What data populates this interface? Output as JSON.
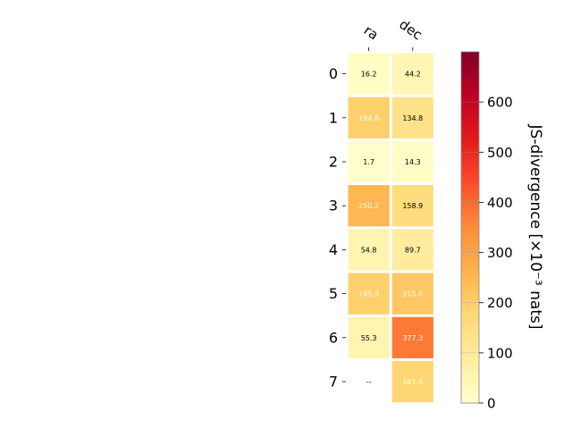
{
  "chart_data": {
    "type": "heatmap",
    "columns": [
      "ra",
      "dec"
    ],
    "rows": [
      "0",
      "1",
      "2",
      "3",
      "4",
      "5",
      "6",
      "7"
    ],
    "values": [
      [
        16.2,
        44.2
      ],
      [
        194.8,
        134.8
      ],
      [
        1.7,
        14.3
      ],
      [
        250.2,
        158.9
      ],
      [
        54.8,
        89.7
      ],
      [
        195.9,
        215.0
      ],
      [
        55.3,
        377.3
      ],
      [
        null,
        181.9
      ]
    ],
    "labels": [
      [
        "16.2",
        "44.2"
      ],
      [
        "194.8",
        "134.8"
      ],
      [
        "1.7",
        "14.3"
      ],
      [
        "250.2",
        "158.9"
      ],
      [
        "54.8",
        "89.7"
      ],
      [
        "195.9",
        "215.0"
      ],
      [
        "55.3",
        "377.3"
      ],
      [
        "--",
        "181.9"
      ]
    ],
    "colormap": "YlOrRd",
    "colorbar": {
      "label": "JS-divergence [×10⁻³ nats]",
      "range": [
        0,
        700
      ],
      "ticks": [
        0,
        100,
        200,
        300,
        400,
        500,
        600
      ],
      "tick_labels": [
        "0",
        "100",
        "200",
        "300",
        "400",
        "500",
        "600"
      ]
    },
    "grid": false
  }
}
